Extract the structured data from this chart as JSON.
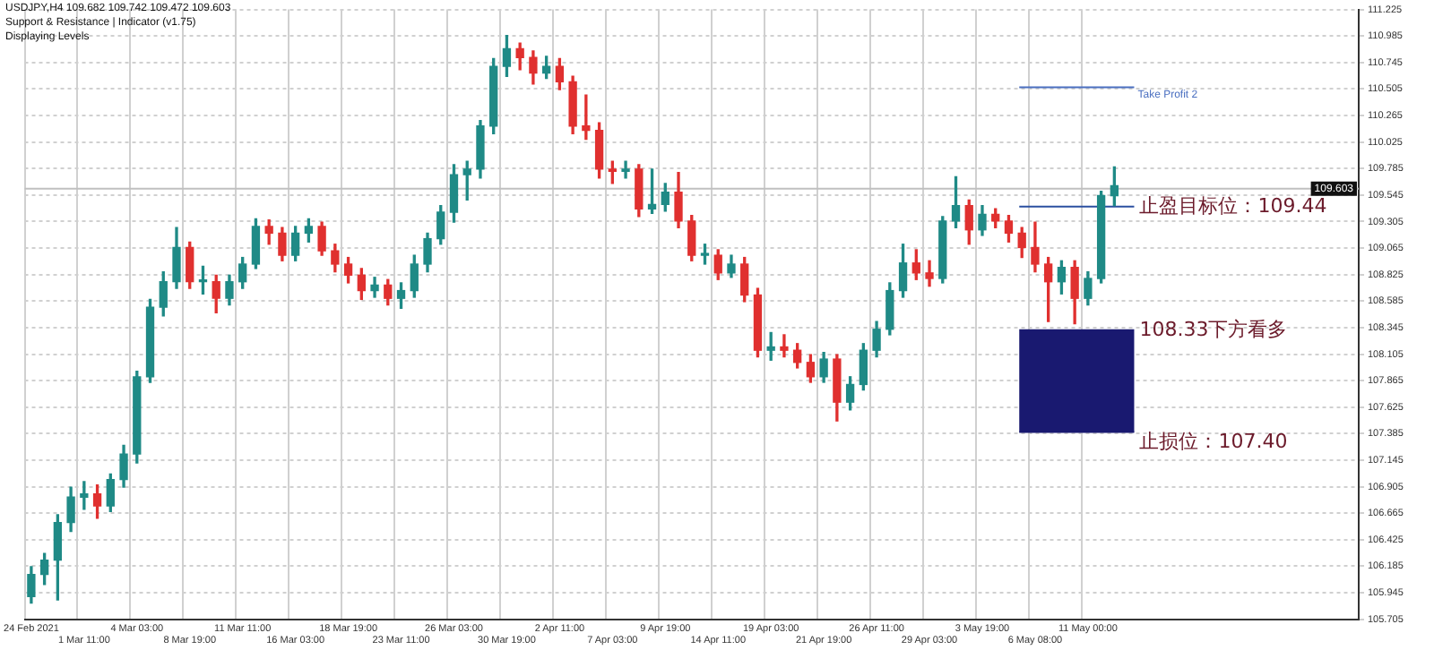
{
  "chart_data": {
    "type": "candlestick",
    "title": "USDJPY,H4 109.682 109.742 109.472 109.603",
    "subtitle": "Support & Resistance | Indicator (v1.75)",
    "annotations": [
      "Displaying Levels"
    ],
    "categories": [
      "24 Feb 2021",
      null,
      null,
      null,
      "1 Mar 11:00",
      null,
      null,
      null,
      "4 Mar 03:00",
      null,
      null,
      null,
      "8 Mar 19:00",
      null,
      null,
      null,
      "11 Mar 11:00",
      null,
      null,
      null,
      "16 Mar 03:00",
      null,
      null,
      null,
      "18 Mar 19:00",
      null,
      null,
      null,
      "23 Mar 11:00",
      null,
      null,
      null,
      "26 Mar 03:00",
      null,
      null,
      null,
      "30 Mar 19:00",
      null,
      null,
      null,
      "2 Apr 11:00",
      null,
      null,
      null,
      "7 Apr 03:00",
      null,
      null,
      null,
      "9 Apr 19:00",
      null,
      null,
      null,
      "14 Apr 11:00",
      null,
      null,
      null,
      "19 Apr 03:00",
      null,
      null,
      null,
      "21 Apr 19:00",
      null,
      null,
      null,
      "26 Apr 11:00",
      null,
      null,
      null,
      "29 Apr 03:00",
      null,
      null,
      null,
      "3 May 19:00",
      null,
      null,
      null,
      "6 May 08:00",
      null,
      null,
      null,
      "11 May 00:00",
      null,
      null,
      null,
      null,
      null,
      null,
      null,
      null,
      null,
      null,
      null,
      null,
      null,
      null,
      null,
      null,
      null,
      null,
      null,
      null
    ],
    "ohlc": [
      [
        105.91,
        106.18,
        105.85,
        106.11
      ],
      [
        106.11,
        106.3,
        106.02,
        106.24
      ],
      [
        106.24,
        106.65,
        105.88,
        106.58
      ],
      [
        106.58,
        106.9,
        106.5,
        106.81
      ],
      [
        106.81,
        106.95,
        106.7,
        106.84
      ],
      [
        106.84,
        106.92,
        106.62,
        106.73
      ],
      [
        106.73,
        107.02,
        106.68,
        106.97
      ],
      [
        106.97,
        107.28,
        106.9,
        107.2
      ],
      [
        107.2,
        107.95,
        107.12,
        107.9
      ],
      [
        107.9,
        108.6,
        107.85,
        108.53
      ],
      [
        108.53,
        108.85,
        108.45,
        108.76
      ],
      [
        108.76,
        109.25,
        108.7,
        109.07
      ],
      [
        109.07,
        109.12,
        108.7,
        108.76
      ],
      [
        108.76,
        108.9,
        108.65,
        108.76
      ],
      [
        108.76,
        108.82,
        108.48,
        108.61
      ],
      [
        108.61,
        108.82,
        108.55,
        108.76
      ],
      [
        108.76,
        108.98,
        108.7,
        108.92
      ],
      [
        108.92,
        109.33,
        108.88,
        109.26
      ],
      [
        109.26,
        109.32,
        109.1,
        109.2
      ],
      [
        109.2,
        109.25,
        108.95,
        109.0
      ],
      [
        109.0,
        109.26,
        108.95,
        109.2
      ],
      [
        109.2,
        109.33,
        109.12,
        109.26
      ],
      [
        109.26,
        109.3,
        109.0,
        109.04
      ],
      [
        109.04,
        109.1,
        108.85,
        108.92
      ],
      [
        108.92,
        108.98,
        108.75,
        108.82
      ],
      [
        108.82,
        108.88,
        108.6,
        108.68
      ],
      [
        108.68,
        108.8,
        108.62,
        108.73
      ],
      [
        108.73,
        108.78,
        108.55,
        108.61
      ],
      [
        108.61,
        108.75,
        108.52,
        108.68
      ],
      [
        108.68,
        109.0,
        108.62,
        108.92
      ],
      [
        108.92,
        109.2,
        108.85,
        109.15
      ],
      [
        109.15,
        109.45,
        109.1,
        109.39
      ],
      [
        109.39,
        109.82,
        109.3,
        109.73
      ],
      [
        109.73,
        109.85,
        109.5,
        109.78
      ],
      [
        109.78,
        110.22,
        109.7,
        110.17
      ],
      [
        110.17,
        110.78,
        110.1,
        110.71
      ],
      [
        110.71,
        110.99,
        110.62,
        110.87
      ],
      [
        110.87,
        110.92,
        110.68,
        110.79
      ],
      [
        110.79,
        110.85,
        110.55,
        110.65
      ],
      [
        110.65,
        110.8,
        110.6,
        110.71
      ],
      [
        110.71,
        110.78,
        110.5,
        110.57
      ],
      [
        110.57,
        110.62,
        110.1,
        110.17
      ],
      [
        110.17,
        110.45,
        110.05,
        110.13
      ],
      [
        110.13,
        110.2,
        109.7,
        109.78
      ],
      [
        109.78,
        109.85,
        109.65,
        109.76
      ],
      [
        109.76,
        109.85,
        109.7,
        109.78
      ],
      [
        109.78,
        109.82,
        109.35,
        109.42
      ],
      [
        109.42,
        109.78,
        109.38,
        109.46
      ],
      [
        109.46,
        109.65,
        109.4,
        109.57
      ],
      [
        109.57,
        109.75,
        109.25,
        109.31
      ],
      [
        109.31,
        109.36,
        108.95,
        109.0
      ],
      [
        109.0,
        109.1,
        108.92,
        109.0
      ],
      [
        109.0,
        109.05,
        108.78,
        108.84
      ],
      [
        108.84,
        109.0,
        108.8,
        108.92
      ],
      [
        108.92,
        108.98,
        108.58,
        108.64
      ],
      [
        108.64,
        108.7,
        108.08,
        108.14
      ],
      [
        108.14,
        108.3,
        108.05,
        108.17
      ],
      [
        108.17,
        108.28,
        108.08,
        108.14
      ],
      [
        108.14,
        108.2,
        107.98,
        108.03
      ],
      [
        108.03,
        108.1,
        107.85,
        107.9
      ],
      [
        107.9,
        108.12,
        107.85,
        108.06
      ],
      [
        108.06,
        108.1,
        107.5,
        107.67
      ],
      [
        107.67,
        107.9,
        107.6,
        107.83
      ],
      [
        107.83,
        108.2,
        107.78,
        108.14
      ],
      [
        108.14,
        108.4,
        108.08,
        108.33
      ],
      [
        108.33,
        108.75,
        108.28,
        108.68
      ],
      [
        108.68,
        109.1,
        108.62,
        108.93
      ],
      [
        108.93,
        109.05,
        108.78,
        108.84
      ],
      [
        108.84,
        108.95,
        108.72,
        108.79
      ],
      [
        108.79,
        109.35,
        108.75,
        109.31
      ],
      [
        109.31,
        109.71,
        109.25,
        109.45
      ],
      [
        109.45,
        109.5,
        109.1,
        109.23
      ],
      [
        109.23,
        109.45,
        109.18,
        109.37
      ],
      [
        109.37,
        109.42,
        109.25,
        109.31
      ],
      [
        109.31,
        109.36,
        109.12,
        109.2
      ],
      [
        109.2,
        109.25,
        108.98,
        109.07
      ],
      [
        109.07,
        109.3,
        108.85,
        108.92
      ],
      [
        108.92,
        108.98,
        108.4,
        108.76
      ],
      [
        108.76,
        108.95,
        108.65,
        108.89
      ],
      [
        108.89,
        108.95,
        108.38,
        108.61
      ],
      [
        108.61,
        108.85,
        108.55,
        108.79
      ],
      [
        108.79,
        109.58,
        108.75,
        109.54
      ],
      [
        109.54,
        109.8,
        109.45,
        109.63
      ],
      null,
      null,
      null,
      null,
      null,
      null,
      null,
      null,
      null,
      null,
      null,
      null,
      null,
      null,
      null,
      null,
      null,
      null
    ],
    "ylim": [
      105.705,
      111.225
    ],
    "yticks": [
      105.705,
      105.945,
      106.185,
      106.425,
      106.665,
      106.905,
      107.145,
      107.385,
      107.625,
      107.865,
      108.105,
      108.345,
      108.585,
      108.825,
      109.065,
      109.305,
      109.545,
      109.785,
      110.025,
      110.265,
      110.505,
      110.745,
      110.985,
      111.225
    ],
    "grid": true,
    "legend": false,
    "ref_lines": [
      {
        "axis": "y",
        "value": 109.603,
        "label": "109.603",
        "color": "#c0c0c0"
      },
      {
        "axis": "y",
        "value": 110.52,
        "label": "Take Profit 2",
        "color": "#4a6fc0"
      },
      {
        "axis": "y",
        "value": 109.44,
        "label": "止盈目标位：109.44",
        "color": "#2b4fa0"
      },
      {
        "axis": "y",
        "value": 107.4,
        "label": "止损位：107.40",
        "color": "#191970"
      }
    ],
    "bands": [
      {
        "axis": "y",
        "from": 107.4,
        "to": 108.33,
        "label": "108.33下方看多",
        "color": "#191970"
      }
    ]
  }
}
